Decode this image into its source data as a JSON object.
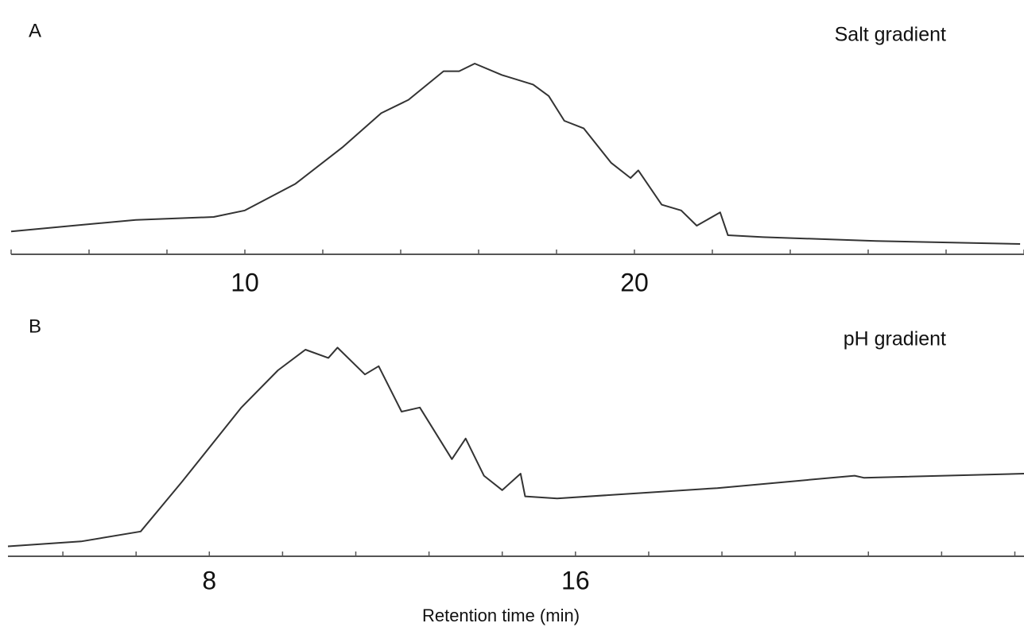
{
  "chart_data": [
    {
      "type": "line",
      "panel_label": "A",
      "annotation": "Salt gradient",
      "color": "#333333",
      "x": [
        4,
        5.8,
        7.2,
        9.2,
        10,
        11.3,
        12.5,
        13.5,
        14.2,
        15.1,
        15.5,
        15.9,
        16.6,
        17.4,
        17.8,
        18.2,
        18.7,
        19.4,
        19.9,
        20.1,
        20.7,
        21.2,
        21.6,
        22.2,
        22.4,
        23.3,
        26.2,
        29.9
      ],
      "values": [
        12,
        15.4,
        18,
        19.6,
        23,
        37,
        56,
        74,
        81,
        96,
        96,
        100,
        94,
        89,
        83,
        70,
        66,
        48,
        40,
        44,
        26,
        23,
        15,
        22,
        10,
        9,
        7,
        5.4
      ],
      "xlim": [
        4,
        30
      ],
      "ylim": [
        0,
        100
      ],
      "xticks": [
        10,
        20
      ],
      "xminor_ticks": [
        4,
        6,
        8,
        12,
        14,
        16,
        18,
        22,
        24,
        26,
        28,
        30
      ]
    },
    {
      "type": "line",
      "panel_label": "B",
      "annotation": "pH gradient",
      "color": "#333333",
      "xlabel": "Retention time (min)",
      "x": [
        3.6,
        5.2,
        6.5,
        7.4,
        8.7,
        9.5,
        10.1,
        10.6,
        10.8,
        11.4,
        11.7,
        12.2,
        12.6,
        13.3,
        13.6,
        14.0,
        14.4,
        14.8,
        14.9,
        15.6,
        19.1,
        22.1,
        22.3,
        25.8
      ],
      "values": [
        4.8,
        7.2,
        12,
        36,
        72,
        90,
        100,
        96,
        101,
        88,
        92,
        70,
        72,
        47,
        57,
        39,
        32,
        40,
        29,
        28,
        33,
        39,
        38,
        40
      ],
      "xlim": [
        3.6,
        25.8
      ],
      "ylim": [
        0,
        105
      ],
      "xticks": [
        8,
        16
      ],
      "xminor_ticks": [
        4.8,
        6.4,
        9.6,
        11.2,
        12.8,
        14.4,
        17.6,
        19.2,
        20.8,
        22.4,
        24,
        25.6
      ]
    }
  ]
}
